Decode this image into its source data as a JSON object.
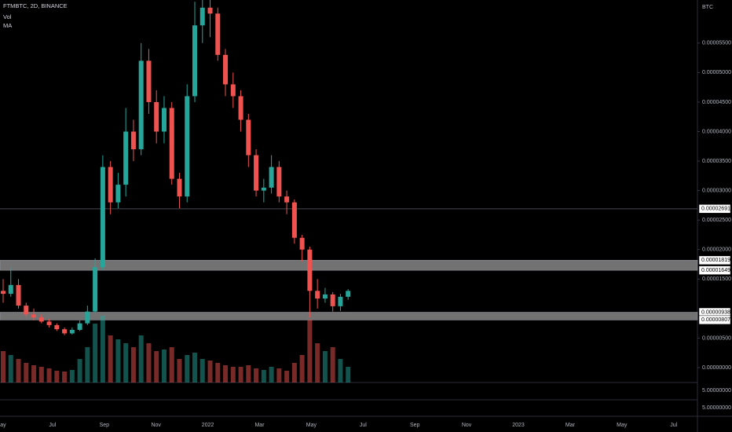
{
  "chart_data": {
    "type": "candlestick",
    "title": "FTMBTC, 2D, BINANCE",
    "indicators": [
      "Vol",
      "MA"
    ],
    "unit": "BTC",
    "up_color": "#26a69a",
    "down_color": "#ef5350",
    "open": [
      1.3e-05,
      1.25e-05,
      1.4e-05,
      1.05e-05,
      9e-06,
      8.5e-06,
      7.8e-06,
      7.2e-06,
      6.5e-06,
      5.8e-06,
      6.4e-06,
      7.5e-06,
      9.5e-06,
      1.7e-05,
      3.4e-05,
      2.8e-05,
      3.1e-05,
      4e-05,
      3.7e-05,
      5.2e-05,
      4.5e-05,
      4e-05,
      4.4e-05,
      3.2e-05,
      2.9e-05,
      4.6e-05,
      5.8e-05,
      6.1e-05,
      6e-05,
      5.3e-05,
      4.8e-05,
      4.6e-05,
      4.2e-05,
      3.6e-05,
      3e-05,
      3.05e-05,
      3.4e-05,
      2.9e-05,
      2.8e-05,
      2.2e-05,
      2e-05,
      1.3e-05,
      1.17e-05,
      1.24e-05,
      1.04e-05,
      1.2e-05
    ],
    "high": [
      1.5e-05,
      1.7e-05,
      1.5e-05,
      1.1e-05,
      1e-05,
      9e-06,
      8.2e-06,
      7.5e-06,
      6.8e-06,
      6.8e-06,
      8e-06,
      1.05e-05,
      1.85e-05,
      3.6e-05,
      3.5e-05,
      3.3e-05,
      4.4e-05,
      4.2e-05,
      5.5e-05,
      5.4e-05,
      4.7e-05,
      4.6e-05,
      4.5e-05,
      3.3e-05,
      4.8e-05,
      6.2e-05,
      6.3e-05,
      6.25e-05,
      6.1e-05,
      5.4e-05,
      5e-05,
      4.7e-05,
      4.3e-05,
      3.7e-05,
      3.2e-05,
      3.6e-05,
      3.5e-05,
      3e-05,
      2.85e-05,
      2.25e-05,
      2.05e-05,
      1.5e-05,
      1.35e-05,
      1.28e-05,
      1.25e-05,
      1.33e-05
    ],
    "low": [
      1.1e-05,
      1.2e-05,
      1e-05,
      8.5e-06,
      8e-06,
      7.5e-06,
      6.8e-06,
      6.2e-06,
      5.5e-06,
      5.6e-06,
      6.2e-06,
      7.2e-06,
      9.2e-06,
      1.65e-05,
      2.6e-05,
      2.7e-05,
      2.9e-05,
      3.5e-05,
      3.6e-05,
      4.3e-05,
      3.8e-05,
      3.8e-05,
      3.1e-05,
      2.7e-05,
      2.8e-05,
      4.5e-05,
      5.5e-05,
      5.6e-05,
      5.2e-05,
      4.6e-05,
      4.4e-05,
      4e-05,
      3.4e-05,
      2.9e-05,
      2.8e-05,
      2.95e-05,
      2.8e-05,
      2.6e-05,
      2.1e-05,
      1.8e-05,
      8.5e-06,
      1e-05,
      1.1e-05,
      9.5e-06,
      9.6e-06,
      1.15e-05
    ],
    "close": [
      1.25e-05,
      1.4e-05,
      1.05e-05,
      9e-06,
      8.5e-06,
      7.8e-06,
      7.2e-06,
      6.5e-06,
      5.8e-06,
      6.4e-06,
      7.5e-06,
      9.5e-06,
      1.7e-05,
      3.4e-05,
      2.8e-05,
      3.1e-05,
      4e-05,
      3.7e-05,
      5.2e-05,
      4.5e-05,
      4e-05,
      4.4e-05,
      3.2e-05,
      2.9e-05,
      4.6e-05,
      5.8e-05,
      6.1e-05,
      6e-05,
      5.3e-05,
      4.8e-05,
      4.6e-05,
      4.2e-05,
      3.6e-05,
      3e-05,
      3.05e-05,
      3.4e-05,
      2.9e-05,
      2.8e-05,
      2.2e-05,
      2e-05,
      1.3e-05,
      1.17e-05,
      1.24e-05,
      1.04e-05,
      1.2e-05,
      1.3e-05
    ],
    "volume": [
      40,
      35,
      30,
      25,
      22,
      20,
      18,
      15,
      14,
      16,
      30,
      45,
      75,
      85,
      60,
      55,
      50,
      45,
      60,
      50,
      40,
      42,
      45,
      30,
      35,
      38,
      30,
      28,
      25,
      22,
      20,
      20,
      22,
      18,
      16,
      20,
      18,
      15,
      25,
      35,
      80,
      50,
      40,
      45,
      30,
      20
    ],
    "ylim": [
      -2.53e-06,
      6.23e-05
    ],
    "yticks": [
      {
        "value": 5.5e-05,
        "label": "0.00005500"
      },
      {
        "value": 5e-05,
        "label": "0.00005000"
      },
      {
        "value": 4.5e-05,
        "label": "0.00004500"
      },
      {
        "value": 4e-05,
        "label": "0.00004000"
      },
      {
        "value": 3.5e-05,
        "label": "0.00003500"
      },
      {
        "value": 3e-05,
        "label": "0.00003000"
      },
      {
        "value": 2.5e-05,
        "label": "0.00002500"
      },
      {
        "value": 2e-05,
        "label": "0.00002000"
      },
      {
        "value": 1.5e-05,
        "label": "0.00001500"
      },
      {
        "value": 5e-06,
        "label": "0.00000500"
      },
      {
        "value": 0,
        "label": "0.00000000"
      }
    ],
    "volume_axis_labels": [
      "5.00000000",
      "5.00000000"
    ],
    "xticks": [
      "May",
      "Jul",
      "Sep",
      "Nov",
      "2022",
      "Mar",
      "May",
      "Jul",
      "Sep",
      "Nov",
      "2023",
      "Mar",
      "May",
      "Jul"
    ],
    "level": {
      "value": 2.691e-05,
      "label": "0.00002691"
    },
    "zones": [
      {
        "top": {
          "value": 1.819e-05,
          "label": "0.00001819"
        },
        "bottom": {
          "value": 1.649e-05,
          "label": "0.00001649"
        }
      },
      {
        "top": {
          "value": 9.38e-06,
          "label": "0.00000938"
        },
        "bottom": {
          "value": 8.07e-06,
          "label": "0.00000807"
        }
      }
    ]
  }
}
